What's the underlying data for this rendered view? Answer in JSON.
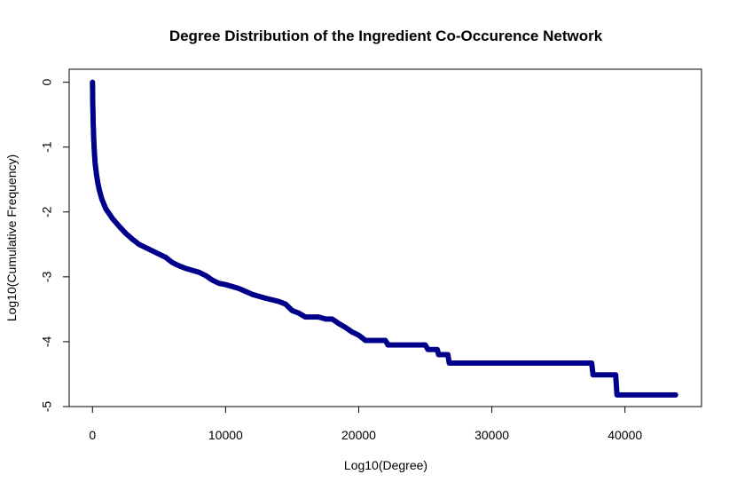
{
  "chart_data": {
    "type": "scatter",
    "title": "Degree Distribution of the Ingredient Co-Occurence Network",
    "xlabel": "Log10(Degree)",
    "ylabel": "Log10(Cumulative Frequency)",
    "xlim": [
      -1750,
      45750
    ],
    "ylim": [
      -5.0,
      0.2
    ],
    "x_ticks": [
      0,
      10000,
      20000,
      30000,
      40000
    ],
    "x_tick_labels": [
      "0",
      "10000",
      "20000",
      "30000",
      "40000"
    ],
    "y_ticks": [
      0,
      -1,
      -2,
      -3,
      -4,
      -5
    ],
    "y_tick_labels": [
      "0",
      "-1",
      "-2",
      "-3",
      "-4",
      "-5"
    ],
    "grid": false,
    "legend": "none",
    "point_color": "#00008b",
    "series": [
      {
        "points": [
          [
            0,
            0.0
          ],
          [
            20,
            -0.3
          ],
          [
            50,
            -0.6
          ],
          [
            100,
            -0.9
          ],
          [
            150,
            -1.1
          ],
          [
            200,
            -1.25
          ],
          [
            300,
            -1.42
          ],
          [
            400,
            -1.55
          ],
          [
            500,
            -1.65
          ],
          [
            700,
            -1.8
          ],
          [
            1000,
            -1.95
          ],
          [
            1500,
            -2.1
          ],
          [
            2000,
            -2.22
          ],
          [
            2500,
            -2.33
          ],
          [
            3000,
            -2.42
          ],
          [
            3500,
            -2.5
          ],
          [
            4000,
            -2.55
          ],
          [
            4500,
            -2.6
          ],
          [
            5000,
            -2.65
          ],
          [
            5500,
            -2.7
          ],
          [
            6000,
            -2.78
          ],
          [
            6500,
            -2.83
          ],
          [
            7000,
            -2.87
          ],
          [
            7500,
            -2.9
          ],
          [
            8000,
            -2.93
          ],
          [
            8500,
            -2.98
          ],
          [
            9000,
            -3.05
          ],
          [
            9500,
            -3.1
          ],
          [
            10000,
            -3.12
          ],
          [
            11000,
            -3.18
          ],
          [
            12000,
            -3.27
          ],
          [
            13000,
            -3.33
          ],
          [
            14000,
            -3.38
          ],
          [
            14500,
            -3.42
          ],
          [
            15000,
            -3.52
          ],
          [
            15500,
            -3.56
          ],
          [
            16000,
            -3.62
          ],
          [
            17000,
            -3.62
          ],
          [
            17500,
            -3.65
          ],
          [
            18000,
            -3.65
          ],
          [
            18500,
            -3.72
          ],
          [
            19000,
            -3.78
          ],
          [
            19500,
            -3.85
          ],
          [
            20000,
            -3.9
          ],
          [
            20500,
            -3.98
          ],
          [
            22000,
            -3.98
          ],
          [
            22200,
            -4.05
          ],
          [
            25000,
            -4.05
          ],
          [
            25200,
            -4.12
          ],
          [
            25900,
            -4.12
          ],
          [
            26000,
            -4.2
          ],
          [
            26700,
            -4.2
          ],
          [
            26800,
            -4.33
          ],
          [
            37500,
            -4.33
          ],
          [
            37600,
            -4.51
          ],
          [
            39300,
            -4.51
          ],
          [
            39400,
            -4.82
          ],
          [
            43800,
            -4.82
          ]
        ]
      }
    ]
  }
}
